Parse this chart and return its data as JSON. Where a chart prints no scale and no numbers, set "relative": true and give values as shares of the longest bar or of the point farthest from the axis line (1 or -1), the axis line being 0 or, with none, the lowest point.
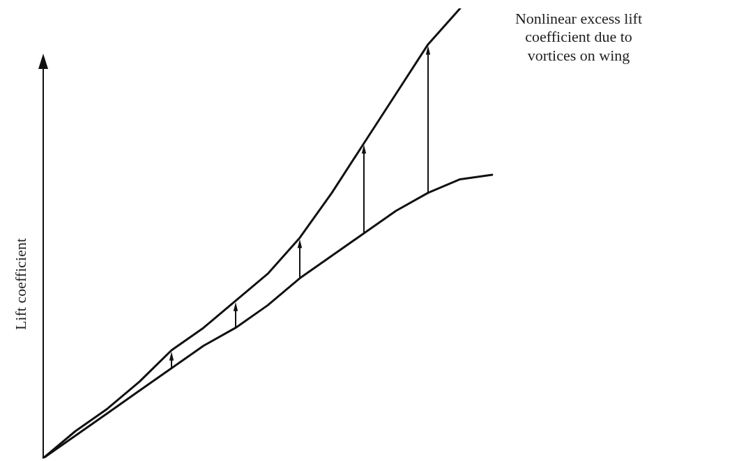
{
  "chart_data": {
    "type": "line",
    "relative": true,
    "ylabel": "Lift coefficient",
    "marker": "none",
    "line_style": "solid",
    "annotations": [
      "Nonlinear excess lift\ncoefficient due to\nvortices on wing"
    ],
    "categories": [
      null,
      null,
      null,
      null,
      null,
      null,
      null,
      null,
      null,
      null,
      null,
      null,
      null,
      null,
      null
    ],
    "series": [
      {
        "color": "#111111",
        "values": [
          0,
          0.06,
          0.11,
          0.17,
          0.24,
          0.29,
          0.35,
          0.41,
          0.49,
          0.59,
          0.7,
          0.81,
          0.92,
          1,
          null
        ]
      },
      {
        "color": "#111111",
        "values": [
          0,
          0.05,
          0.1,
          0.15,
          0.2,
          0.25,
          0.29,
          0.34,
          0.4,
          0.45,
          0.5,
          0.55,
          0.59,
          0.62,
          0.63
        ]
      }
    ]
  }
}
